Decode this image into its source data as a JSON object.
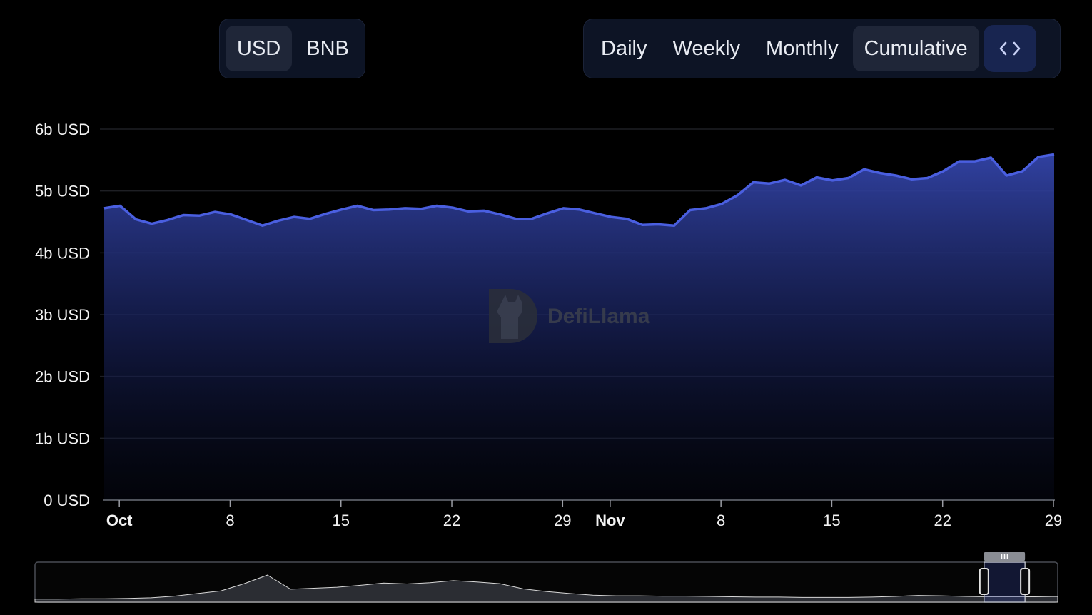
{
  "denomination_toggle": {
    "options": [
      "USD",
      "BNB"
    ],
    "selected": "USD"
  },
  "period_toggle": {
    "options": [
      "Daily",
      "Weekly",
      "Monthly",
      "Cumulative"
    ],
    "selected": "Cumulative",
    "embed_icon": "code-brackets-icon"
  },
  "watermark": "DefiLlama",
  "chart_data": {
    "type": "area",
    "title": "",
    "xlabel": "",
    "ylabel": "",
    "ylim": [
      0,
      6
    ],
    "y_ticks": [
      "0 USD",
      "1b USD",
      "2b USD",
      "3b USD",
      "4b USD",
      "5b USD",
      "6b USD"
    ],
    "x_ticks": [
      {
        "label": "Oct",
        "day": 0,
        "bold": true
      },
      {
        "label": "8",
        "day": 7,
        "bold": false
      },
      {
        "label": "15",
        "day": 14,
        "bold": false
      },
      {
        "label": "22",
        "day": 21,
        "bold": false
      },
      {
        "label": "29",
        "day": 28,
        "bold": false
      },
      {
        "label": "Nov",
        "day": 31,
        "bold": true
      },
      {
        "label": "8",
        "day": 38,
        "bold": false
      },
      {
        "label": "15",
        "day": 45,
        "bold": false
      },
      {
        "label": "22",
        "day": 52,
        "bold": false
      },
      {
        "label": "29",
        "day": 59,
        "bold": false
      }
    ],
    "grid": true,
    "line_color": "#4a5fe0",
    "series": [
      {
        "x": [
          "Sep 30",
          "Oct 1",
          "Oct 2",
          "Oct 3",
          "Oct 4",
          "Oct 5",
          "Oct 6",
          "Oct 7",
          "Oct 8",
          "Oct 9",
          "Oct 10",
          "Oct 11",
          "Oct 12",
          "Oct 13",
          "Oct 14",
          "Oct 15",
          "Oct 16",
          "Oct 17",
          "Oct 18",
          "Oct 19",
          "Oct 20",
          "Oct 21",
          "Oct 22",
          "Oct 23",
          "Oct 24",
          "Oct 25",
          "Oct 26",
          "Oct 27",
          "Oct 28",
          "Oct 29",
          "Oct 30",
          "Oct 31",
          "Nov 1",
          "Nov 2",
          "Nov 3",
          "Nov 4",
          "Nov 5",
          "Nov 6",
          "Nov 7",
          "Nov 8",
          "Nov 9",
          "Nov 10",
          "Nov 11",
          "Nov 12",
          "Nov 13",
          "Nov 14",
          "Nov 15",
          "Nov 16",
          "Nov 17",
          "Nov 18",
          "Nov 19",
          "Nov 20",
          "Nov 21",
          "Nov 22",
          "Nov 23",
          "Nov 24",
          "Nov 25",
          "Nov 26",
          "Nov 27",
          "Nov 28",
          "Nov 29"
        ],
        "values": [
          4.72,
          4.76,
          4.54,
          4.47,
          4.53,
          4.61,
          4.6,
          4.66,
          4.62,
          4.53,
          4.44,
          4.52,
          4.58,
          4.55,
          4.63,
          4.7,
          4.76,
          4.69,
          4.7,
          4.72,
          4.71,
          4.76,
          4.73,
          4.67,
          4.68,
          4.62,
          4.55,
          4.55,
          4.64,
          4.72,
          4.7,
          4.64,
          4.58,
          4.55,
          4.45,
          4.46,
          4.44,
          4.69,
          4.72,
          4.79,
          4.93,
          5.14,
          5.12,
          5.18,
          5.09,
          5.22,
          5.17,
          5.21,
          5.35,
          5.29,
          5.25,
          5.19,
          5.21,
          5.32,
          5.48,
          5.48,
          5.54,
          5.25,
          5.32,
          5.55,
          5.59
        ]
      }
    ]
  },
  "brush": {
    "handle_icon": "grip-icon",
    "selected_range_fraction": [
      0.928,
      0.968
    ]
  }
}
